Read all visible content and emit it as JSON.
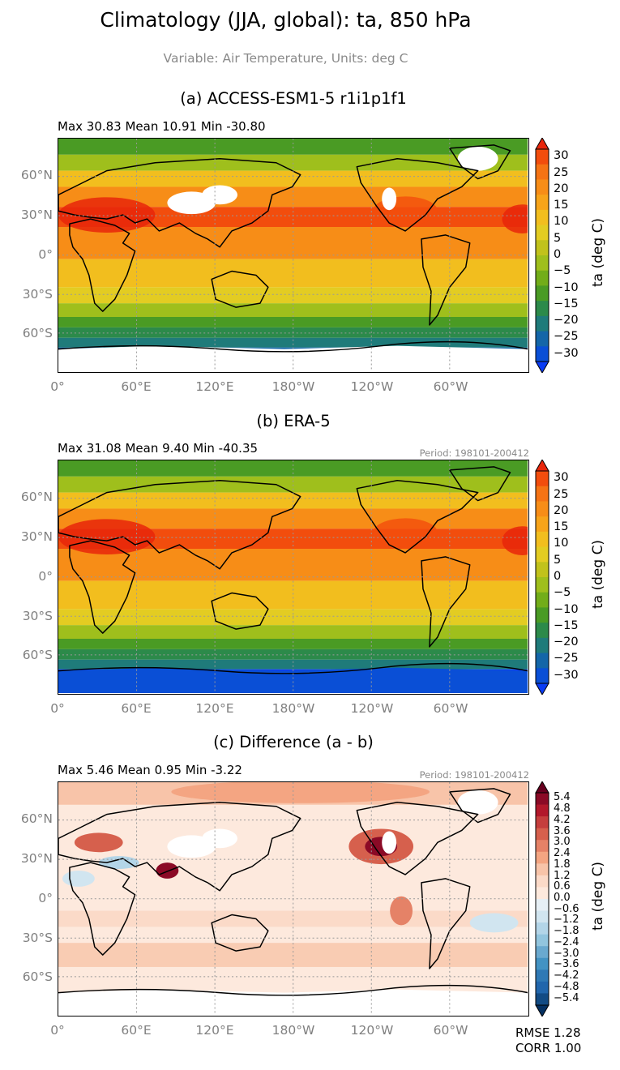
{
  "figure": {
    "title": "Climatology (JJA, global): ta, 850 hPa",
    "subtitle": "Variable: Air Temperature, Units: deg C"
  },
  "lat_labels": [
    "60°N",
    "30°N",
    "0°",
    "30°S",
    "60°S"
  ],
  "lon_labels": [
    "0°",
    "60°E",
    "120°E",
    "180°W",
    "120°W",
    "60°W"
  ],
  "panels": [
    {
      "title": "(a) ACCESS-ESM1-5 r1i1p1f1",
      "stats": "Max 30.83 Mean 10.91 Min -30.80",
      "period": "",
      "colorbar": {
        "label": "ta (deg C)",
        "ticks": [
          "30",
          "25",
          "20",
          "15",
          "10",
          "5",
          "0",
          "−5",
          "−10",
          "−15",
          "−20",
          "−25",
          "−30"
        ],
        "colors": [
          "#e8260b",
          "#f24d0d",
          "#f57314",
          "#f78d17",
          "#f7a41a",
          "#f2be1e",
          "#e3cc22",
          "#c1c21b",
          "#9fbf1c",
          "#72ad19",
          "#4a9b24",
          "#2c8a4a",
          "#1f7b7a",
          "#1466a8",
          "#0a4fd6",
          "#0a3cf5"
        ]
      }
    },
    {
      "title": "(b) ERA-5",
      "stats": "Max 31.08 Mean 9.40 Min -40.35",
      "period": "Period: 198101-200412",
      "colorbar": {
        "label": "ta (deg C)",
        "ticks": [
          "30",
          "25",
          "20",
          "15",
          "10",
          "5",
          "0",
          "−5",
          "−10",
          "−15",
          "−20",
          "−25",
          "−30"
        ],
        "colors": [
          "#e8260b",
          "#f24d0d",
          "#f57314",
          "#f78d17",
          "#f7a41a",
          "#f2be1e",
          "#e3cc22",
          "#c1c21b",
          "#9fbf1c",
          "#72ad19",
          "#4a9b24",
          "#2c8a4a",
          "#1f7b7a",
          "#1466a8",
          "#0a4fd6",
          "#0a3cf5"
        ]
      }
    },
    {
      "title": "(c) Difference (a - b)",
      "stats": "Max 5.46 Mean 0.95 Min -3.22",
      "period": "Period: 198101-200412",
      "colorbar": {
        "label": "ta (deg C)",
        "ticks": [
          "5.4",
          "4.8",
          "4.2",
          "3.6",
          "3.0",
          "2.4",
          "1.8",
          "1.2",
          "0.6",
          "0.0",
          "−0.6",
          "−1.2",
          "−1.8",
          "−2.4",
          "−3.0",
          "−3.6",
          "−4.2",
          "−4.8",
          "−5.4"
        ],
        "colors": [
          "#67001f",
          "#8b0a26",
          "#b2182b",
          "#c53e3d",
          "#d6604d",
          "#e58267",
          "#f4a582",
          "#f8c4a9",
          "#fbdac8",
          "#fde9dd",
          "#e6eff5",
          "#d1e5f0",
          "#b3d5e8",
          "#92c5de",
          "#6aa9cf",
          "#4393c3",
          "#2f79b5",
          "#2166ac",
          "#124b84",
          "#053061"
        ]
      }
    }
  ],
  "metrics": {
    "rmse": "RMSE 1.28",
    "corr": "CORR 1.00"
  },
  "chart_data": [
    {
      "type": "heatmap",
      "title": "(a) ACCESS-ESM1-5 r1i1p1f1",
      "variable": "ta",
      "level": "850 hPa",
      "season": "JJA",
      "units": "deg C",
      "xlabel": "",
      "ylabel": "",
      "x_ticks": [
        "0°",
        "60°E",
        "120°E",
        "180°W",
        "120°W",
        "60°W"
      ],
      "y_ticks": [
        "60°N",
        "30°N",
        "0°",
        "30°S",
        "60°S"
      ],
      "max": 30.83,
      "mean": 10.91,
      "min": -30.8,
      "colorbar_range": [
        -30,
        30
      ],
      "grid": true,
      "zonal_mean_approx": {
        "lat": [
          80,
          60,
          45,
          30,
          15,
          0,
          -15,
          -30,
          -45,
          -60,
          -70,
          -80
        ],
        "value": [
          -2,
          3,
          12,
          20,
          18,
          17,
          15,
          10,
          2,
          -8,
          -15,
          -25
        ]
      }
    },
    {
      "type": "heatmap",
      "title": "(b) ERA-5",
      "variable": "ta",
      "units": "deg C",
      "period": "198101-200412",
      "x_ticks": [
        "0°",
        "60°E",
        "120°E",
        "180°W",
        "120°W",
        "60°W"
      ],
      "y_ticks": [
        "60°N",
        "30°N",
        "0°",
        "30°S",
        "60°S"
      ],
      "max": 31.08,
      "mean": 9.4,
      "min": -40.35,
      "colorbar_range": [
        -30,
        30
      ],
      "grid": true,
      "zonal_mean_approx": {
        "lat": [
          80,
          60,
          45,
          30,
          15,
          0,
          -15,
          -30,
          -45,
          -60,
          -70,
          -80
        ],
        "value": [
          -3,
          3,
          11,
          19,
          18,
          17,
          14,
          9,
          1,
          -9,
          -20,
          -32
        ]
      }
    },
    {
      "type": "heatmap",
      "title": "(c) Difference (a - b)",
      "variable": "ta",
      "units": "deg C",
      "period": "198101-200412",
      "x_ticks": [
        "0°",
        "60°E",
        "120°E",
        "180°W",
        "120°W",
        "60°W"
      ],
      "y_ticks": [
        "60°N",
        "30°N",
        "0°",
        "30°S",
        "60°S"
      ],
      "max": 5.46,
      "mean": 0.95,
      "min": -3.22,
      "colorbar_range": [
        -5.4,
        5.4
      ],
      "rmse": 1.28,
      "corr": 1.0,
      "grid": true
    }
  ]
}
